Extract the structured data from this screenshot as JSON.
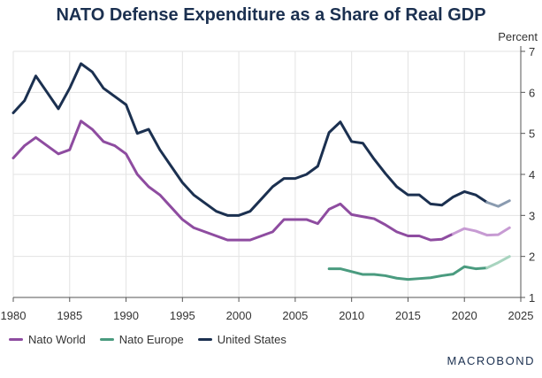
{
  "chart_data": {
    "type": "line",
    "title": "NATO Defense Expenditure as a Share of Real GDP",
    "ylabel": "Percent",
    "xlim": [
      1980,
      2025
    ],
    "ylim": [
      1,
      7
    ],
    "xticks": [
      "1980",
      "1985",
      "1990",
      "1995",
      "2000",
      "2005",
      "2010",
      "2015",
      "2020",
      "2025"
    ],
    "yticks": [
      "1",
      "2",
      "3",
      "4",
      "5",
      "6",
      "7"
    ],
    "grid": true,
    "legend_position": "bottom-left",
    "series": [
      {
        "name": "Nato World",
        "color": "#8e4ca0",
        "projection_color": "#c79bd3",
        "projection_from_index": 39,
        "x": [
          1980,
          1981,
          1982,
          1983,
          1984,
          1985,
          1986,
          1987,
          1988,
          1989,
          1990,
          1991,
          1992,
          1993,
          1994,
          1995,
          1996,
          1997,
          1998,
          1999,
          2000,
          2001,
          2002,
          2003,
          2004,
          2005,
          2006,
          2007,
          2008,
          2009,
          2010,
          2011,
          2012,
          2013,
          2014,
          2015,
          2016,
          2017,
          2018,
          2019,
          2020,
          2021,
          2022,
          2023,
          2024
        ],
        "values": [
          4.4,
          4.7,
          4.9,
          4.7,
          4.5,
          4.6,
          5.3,
          5.1,
          4.8,
          4.7,
          4.5,
          4.0,
          3.7,
          3.5,
          3.2,
          2.9,
          2.7,
          2.6,
          2.5,
          2.4,
          2.4,
          2.4,
          2.5,
          2.6,
          2.9,
          2.9,
          2.9,
          2.8,
          3.15,
          3.28,
          3.02,
          2.97,
          2.92,
          2.77,
          2.6,
          2.5,
          2.5,
          2.4,
          2.42,
          2.55,
          2.68,
          2.62,
          2.52,
          2.53,
          2.7
        ]
      },
      {
        "name": "Nato Europe",
        "color": "#4a9b7f",
        "projection_color": "#a8d4bf",
        "projection_from_index": 14,
        "x": [
          2008,
          2009,
          2010,
          2011,
          2012,
          2013,
          2014,
          2015,
          2016,
          2017,
          2018,
          2019,
          2020,
          2021,
          2022,
          2023,
          2024
        ],
        "values": [
          1.7,
          1.7,
          1.63,
          1.56,
          1.56,
          1.53,
          1.47,
          1.44,
          1.46,
          1.48,
          1.53,
          1.57,
          1.75,
          1.7,
          1.72,
          1.85,
          2.0
        ]
      },
      {
        "name": "United States",
        "color": "#1b3050",
        "projection_color": "#8a9bb0",
        "projection_from_index": 42,
        "x": [
          1980,
          1981,
          1982,
          1983,
          1984,
          1985,
          1986,
          1987,
          1988,
          1989,
          1990,
          1991,
          1992,
          1993,
          1994,
          1995,
          1996,
          1997,
          1998,
          1999,
          2000,
          2001,
          2002,
          2003,
          2004,
          2005,
          2006,
          2007,
          2008,
          2009,
          2010,
          2011,
          2012,
          2013,
          2014,
          2015,
          2016,
          2017,
          2018,
          2019,
          2020,
          2021,
          2022,
          2023,
          2024
        ],
        "values": [
          5.5,
          5.8,
          6.4,
          6.0,
          5.6,
          6.1,
          6.7,
          6.5,
          6.1,
          5.9,
          5.7,
          5.0,
          5.1,
          4.6,
          4.2,
          3.8,
          3.5,
          3.3,
          3.1,
          3.0,
          3.0,
          3.1,
          3.4,
          3.7,
          3.9,
          3.9,
          4.0,
          4.2,
          5.02,
          5.28,
          4.8,
          4.76,
          4.37,
          4.02,
          3.7,
          3.5,
          3.5,
          3.28,
          3.25,
          3.45,
          3.58,
          3.5,
          3.32,
          3.22,
          3.36
        ]
      }
    ]
  },
  "brand": "MACROBOND"
}
